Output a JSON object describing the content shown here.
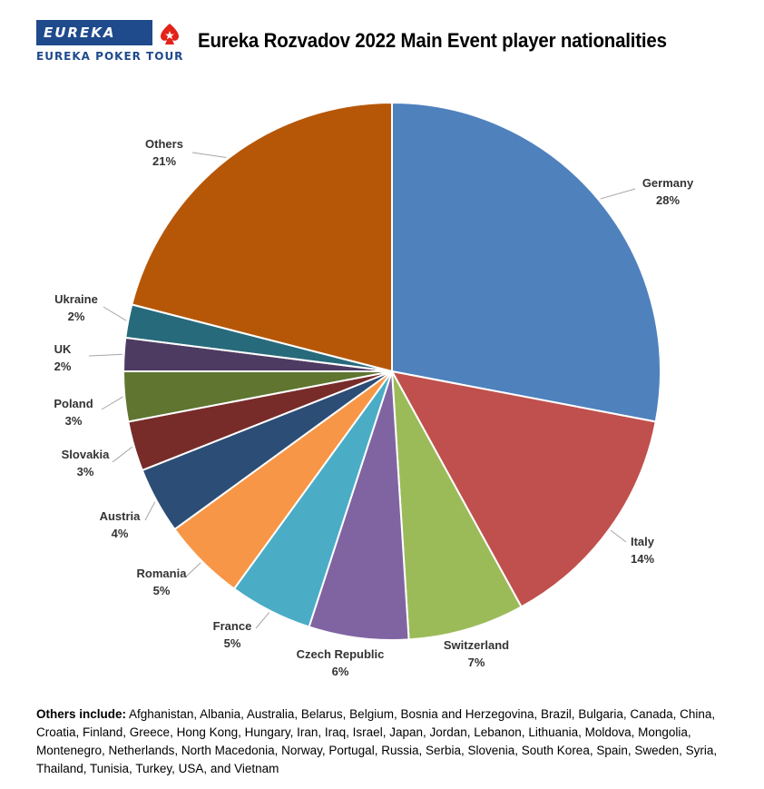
{
  "logo": {
    "wordmark": "EUREKA",
    "tagline": "EUREKA POKER TOUR",
    "accent_color": "#e2231a",
    "brand_color": "#1f4a8c"
  },
  "chart_data": {
    "type": "pie",
    "title": "Eureka Rozvadov 2022 Main Event player nationalities",
    "slices": [
      {
        "label": "Germany",
        "value": 28,
        "display": "28%",
        "color": "#4f81bd"
      },
      {
        "label": "Italy",
        "value": 14,
        "display": "14%",
        "color": "#c0504d"
      },
      {
        "label": "Switzerland",
        "value": 7,
        "display": "7%",
        "color": "#9bbb59"
      },
      {
        "label": "Czech Republic",
        "value": 6,
        "display": "6%",
        "color": "#8064a2"
      },
      {
        "label": "France",
        "value": 5,
        "display": "5%",
        "color": "#4bacc6"
      },
      {
        "label": "Romania",
        "value": 5,
        "display": "5%",
        "color": "#f79646"
      },
      {
        "label": "Austria",
        "value": 4,
        "display": "4%",
        "color": "#2c4d75"
      },
      {
        "label": "Slovakia",
        "value": 3,
        "display": "3%",
        "color": "#772c2a"
      },
      {
        "label": "Poland",
        "value": 3,
        "display": "3%",
        "color": "#5f7530"
      },
      {
        "label": "UK",
        "value": 2,
        "display": "2%",
        "color": "#4d3b62"
      },
      {
        "label": "Ukraine",
        "value": 2,
        "display": "2%",
        "color": "#276a7c"
      },
      {
        "label": "Others",
        "value": 21,
        "display": "21%",
        "color": "#b65708"
      }
    ]
  },
  "footnote": {
    "heading": "Others include:",
    "text": "Afghanistan, Albania, Australia, Belarus, Belgium, Bosnia and Herzegovina, Brazil, Bulgaria, Canada, China, Croatia, Finland, Greece, Hong Kong, Hungary, Iran, Iraq, Israel, Japan, Jordan, Lebanon, Lithuania, Moldova, Mongolia, Montenegro, Netherlands, North Macedonia, Norway, Portugal, Russia, Serbia, Slovenia, South Korea, Spain, Sweden, Syria, Thailand, Tunisia, Turkey, USA, and Vietnam"
  }
}
